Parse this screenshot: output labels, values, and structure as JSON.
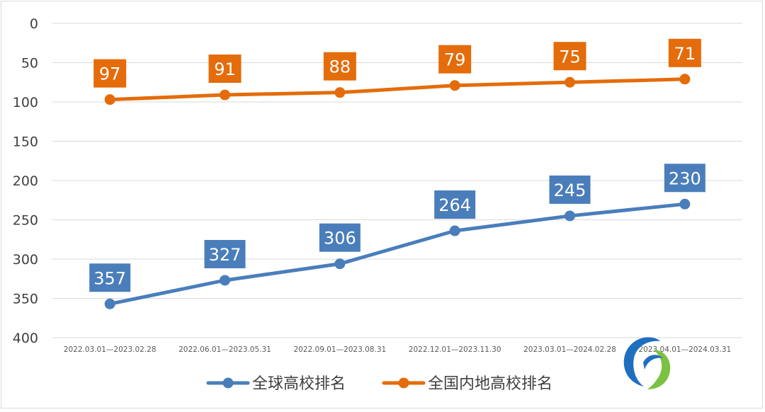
{
  "chart_data": {
    "type": "line",
    "title": "",
    "xlabel": "",
    "ylabel": "",
    "y_axis_inverted": true,
    "ylim": [
      0,
      400
    ],
    "yticks": [
      "0",
      "50",
      "100",
      "150",
      "200",
      "250",
      "300",
      "350",
      "400"
    ],
    "grid": true,
    "legend_position": "bottom",
    "categories": [
      "2022.03.01—2023.02.28",
      "2022.06.01—2023.05.31",
      "2022.09.01—2023.08.31",
      "2022.12.01—2023.11.30",
      "2023.03.01—2024.02.28",
      "2023.04.01—2024.03.31"
    ],
    "series": [
      {
        "name": "全球高校排名",
        "color": "#4A7EBB",
        "values": [
          357,
          327,
          306,
          264,
          245,
          230
        ],
        "labels": [
          "357",
          "327",
          "306",
          "264",
          "245",
          "230"
        ]
      },
      {
        "name": "全国内地高校排名",
        "color": "#E46C0A",
        "values": [
          97,
          91,
          88,
          79,
          75,
          71
        ],
        "labels": [
          "97",
          "91",
          "88",
          "79",
          "75",
          "71"
        ]
      }
    ]
  },
  "logo": {
    "icon": "leaf-swoosh-logo-icon",
    "colors": [
      "#1F6FBF",
      "#7CC242"
    ]
  }
}
